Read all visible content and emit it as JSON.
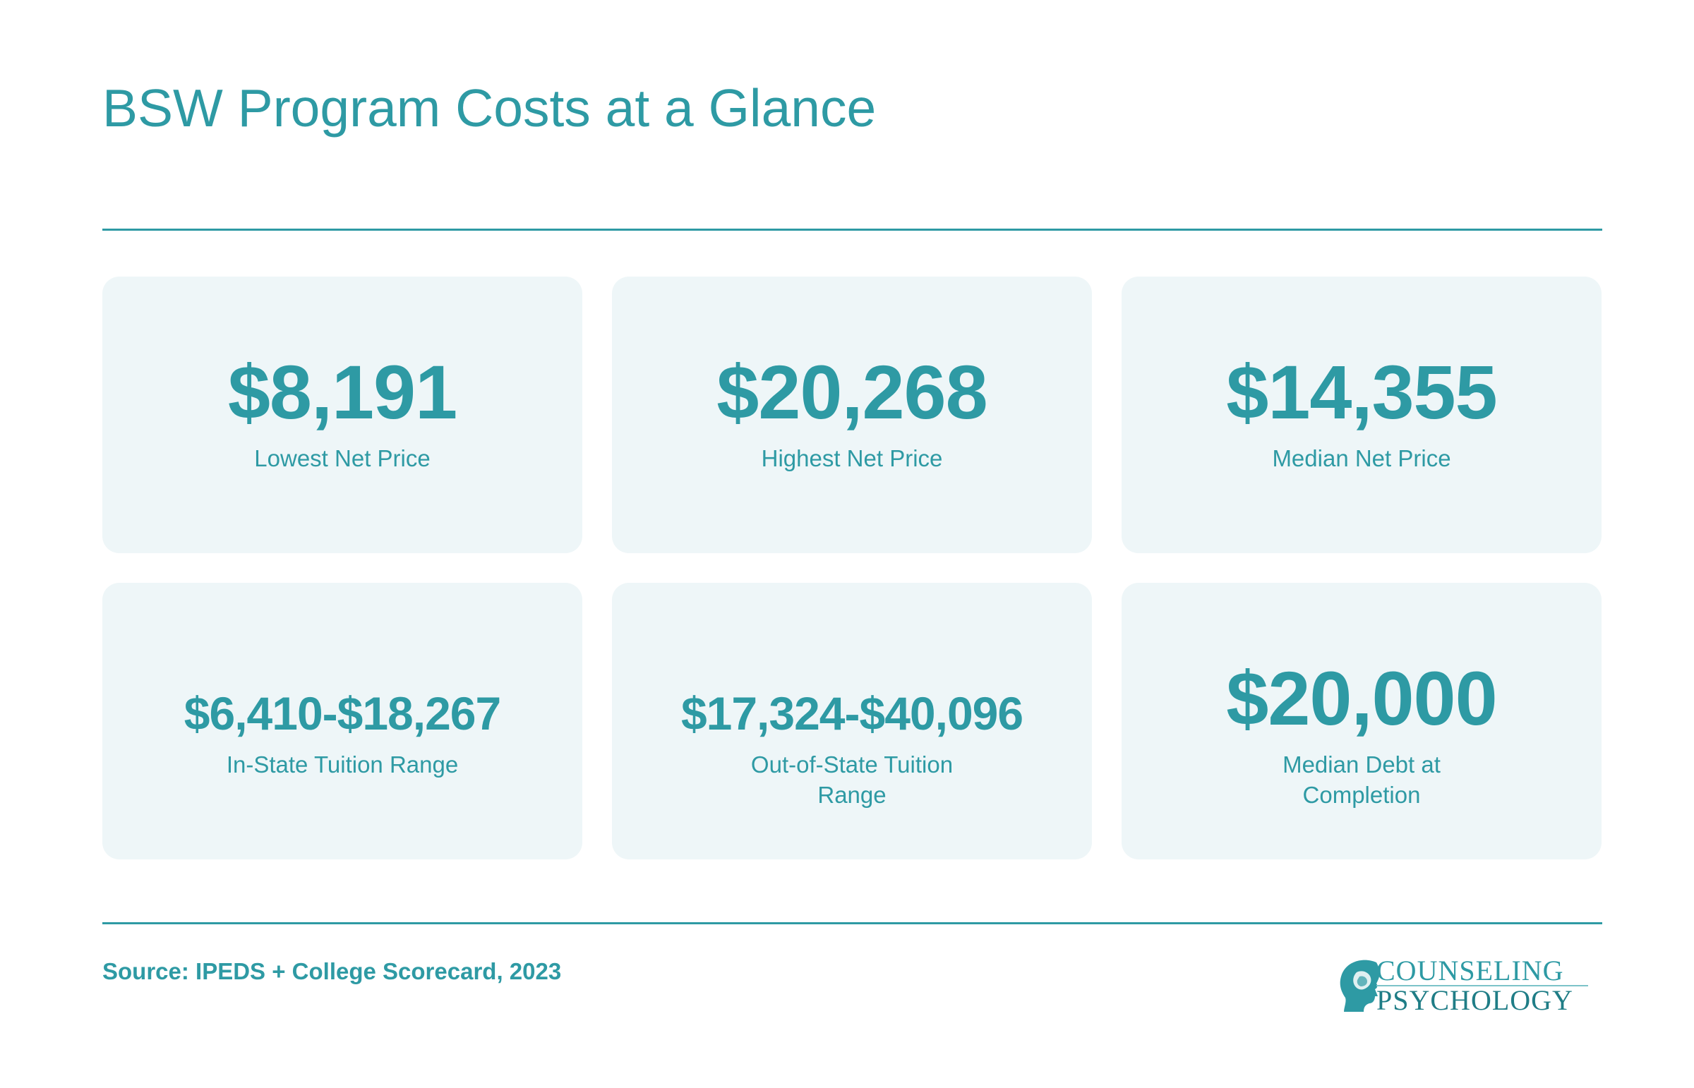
{
  "header": {
    "title": "BSW Program Costs at a Glance"
  },
  "stats": [
    {
      "value": "$8,191",
      "label": "Lowest Net Price"
    },
    {
      "value": "$20,268",
      "label": "Highest Net Price"
    },
    {
      "value": "$14,355",
      "label": "Median Net Price"
    },
    {
      "value": "$6,410-$18,267",
      "label": "In-State Tuition Range"
    },
    {
      "value": "$17,324-$40,096",
      "label": "Out-of-State Tuition Range"
    },
    {
      "value": "$20,000",
      "label": "Median Debt at Completion"
    }
  ],
  "footer": {
    "source": "Source: IPEDS + College Scorecard, 2023",
    "logo_line1": "COUNSELING",
    "logo_line2": "PSYCHOLOGY",
    "logo_icon": "head-profile-icon"
  },
  "colors": {
    "accent": "#2e9aa4",
    "card_bg": "#eef6f8"
  }
}
